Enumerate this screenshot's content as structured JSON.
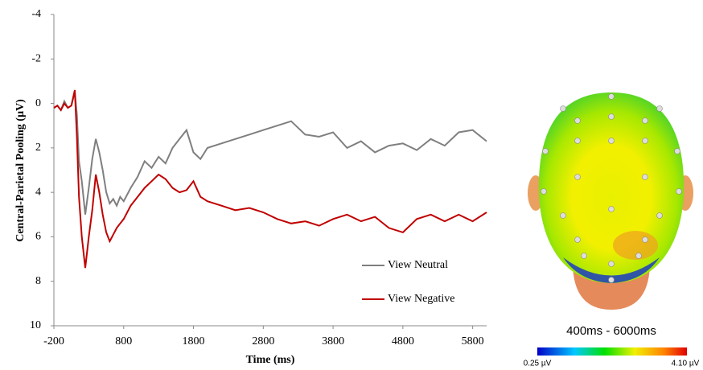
{
  "chart_data": {
    "type": "line",
    "ylabel": "Central-Parietal  Pooling (µV)",
    "xlabel": "Time (ms)",
    "x": [
      -200,
      -150,
      -100,
      -50,
      0,
      50,
      100,
      130,
      160,
      200,
      250,
      300,
      350,
      400,
      450,
      500,
      550,
      600,
      650,
      700,
      750,
      800,
      900,
      1000,
      1100,
      1200,
      1300,
      1400,
      1500,
      1600,
      1700,
      1800,
      1900,
      2000,
      2200,
      2400,
      2600,
      2800,
      3000,
      3200,
      3400,
      3600,
      3800,
      4000,
      4200,
      4400,
      4600,
      4800,
      5000,
      5200,
      5400,
      5600,
      5800,
      6000
    ],
    "series": [
      {
        "name": "View Neutral",
        "color": "#7f7f7f",
        "values": [
          0.2,
          0.1,
          0.3,
          -0.1,
          0.2,
          0.1,
          -0.5,
          0.5,
          2.6,
          3.5,
          5.0,
          3.8,
          2.5,
          1.6,
          2.2,
          3.0,
          4.0,
          4.5,
          4.3,
          4.6,
          4.2,
          4.4,
          3.8,
          3.3,
          2.6,
          2.9,
          2.4,
          2.7,
          2.0,
          1.6,
          1.2,
          2.2,
          2.5,
          2.0,
          1.8,
          1.6,
          1.4,
          1.2,
          1.0,
          0.8,
          1.4,
          1.5,
          1.3,
          2.0,
          1.7,
          2.2,
          1.9,
          1.8,
          2.1,
          1.6,
          1.9,
          1.3,
          1.2,
          1.7
        ]
      },
      {
        "name": "View Negative",
        "color": "#c00000",
        "values": [
          0.2,
          0.1,
          0.3,
          0.0,
          0.2,
          0.1,
          -0.6,
          1.5,
          4.2,
          6.0,
          7.4,
          6.0,
          4.8,
          3.2,
          4.0,
          5.0,
          5.8,
          6.2,
          5.9,
          5.6,
          5.4,
          5.2,
          4.6,
          4.2,
          3.8,
          3.5,
          3.2,
          3.4,
          3.8,
          4.0,
          3.9,
          3.5,
          4.2,
          4.4,
          4.6,
          4.8,
          4.7,
          4.9,
          5.2,
          5.4,
          5.3,
          5.5,
          5.2,
          5.0,
          5.3,
          5.1,
          5.6,
          5.8,
          5.2,
          5.0,
          5.3,
          5.0,
          5.3,
          4.9
        ]
      }
    ],
    "xlim": [
      -200,
      6000
    ],
    "xticks": [
      -200,
      800,
      1800,
      2800,
      3800,
      4800,
      5800
    ],
    "ylim": [
      -4,
      10
    ],
    "yticks": [
      -4,
      -2,
      0,
      2,
      4,
      6,
      8,
      10
    ],
    "y_inverted": true,
    "grid": false,
    "legend": "lower right"
  },
  "topomap": {
    "title": "400ms - 6000ms",
    "min_label": "0.25 µV",
    "max_label": "4.10 µV"
  }
}
